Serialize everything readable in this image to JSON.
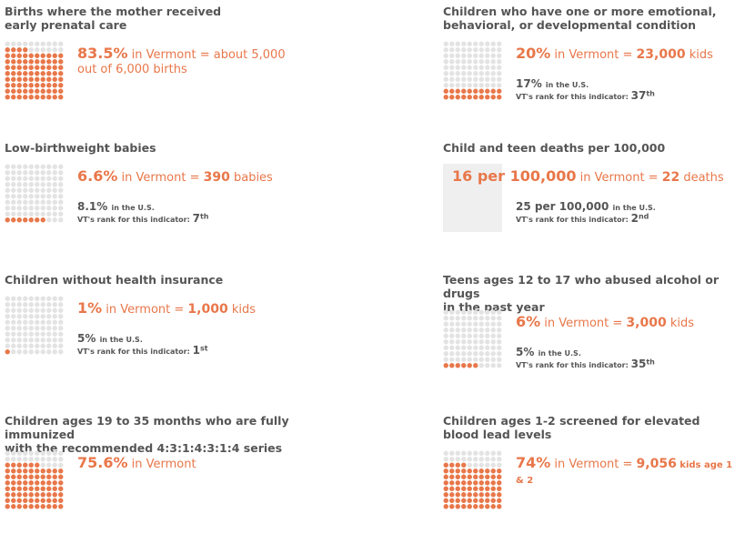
{
  "panels": [
    {
      "title": [
        "Births where the mother received",
        "early prenatal care"
      ],
      "stat": "83.5%",
      "parts": [
        {
          "text": " in Vermont = about 5,000 out of 6,000 births"
        }
      ],
      "dots": true
    },
    {
      "title": [
        "Children who have one or more emotional,",
        "behavioral, or developmental condition"
      ],
      "stat": "20%",
      "parts": [
        {
          "text": " in Vermont = "
        },
        {
          "text": "23,000",
          "bold": true
        },
        {
          "text": " kids"
        }
      ],
      "us": "17%",
      "us_label": "in the U.S.",
      "rank_label": "VT's rank for this indicator:",
      "rank": "37",
      "rank_suffix": "th",
      "dots": true
    },
    {
      "title": [
        "Low-birthweight babies"
      ],
      "stat": "6.6%",
      "parts": [
        {
          "text": " in Vermont = "
        },
        {
          "text": "390",
          "bold": true
        },
        {
          "text": " babies"
        }
      ],
      "us": "8.1%",
      "us_label": "in the U.S.",
      "rank_label": "VT's rank for this indicator:",
      "rank": "7",
      "rank_suffix": "th",
      "dots": true
    },
    {
      "title": [
        "Child and teen deaths per 100,000"
      ],
      "stat": "16 per 100,000",
      "parts": [
        {
          "text": " in Vermont = "
        },
        {
          "text": "22",
          "bold": true
        },
        {
          "text": " deaths"
        }
      ],
      "us": "25 per 100,000",
      "us_label": "in the U.S.",
      "rank_label": "VT's rank for this indicator:",
      "rank": "2",
      "rank_suffix": "nd",
      "dots": false
    },
    {
      "title": [
        "Children without health insurance"
      ],
      "stat": "1%",
      "parts": [
        {
          "text": " in Vermont = "
        },
        {
          "text": "1,000",
          "bold": true
        },
        {
          "text": " kids"
        }
      ],
      "us": "5%",
      "us_label": "in the U.S.",
      "rank_label": "VT's rank for this indicator:",
      "rank": "1",
      "rank_suffix": "st",
      "dots": true
    },
    {
      "title": [
        "Teens ages 12 to 17 who abused alcohol or drugs",
        "in the past year"
      ],
      "stat": "6%",
      "parts": [
        {
          "text": " in Vermont = "
        },
        {
          "text": "3,000",
          "bold": true
        },
        {
          "text": " kids"
        }
      ],
      "us": "5%",
      "us_label": "in the U.S.",
      "rank_label": "VT's rank for this indicator:",
      "rank": "35",
      "rank_suffix": "th",
      "dots": true
    },
    {
      "title": [
        "Children ages 19 to 35 months who are fully immunized",
        "with the recommended 4:3:1:4:3:1:4 series"
      ],
      "stat": "75.6%",
      "parts": [
        {
          "text": " in Vermont"
        }
      ],
      "dots": true
    },
    {
      "title": [
        "Children ages 1-2 screened for elevated",
        "blood lead levels"
      ],
      "stat": "74%",
      "parts": [
        {
          "text": " in Vermont =  "
        },
        {
          "text": "9,056",
          "bold": true
        },
        {
          "text": " kids age 1 & 2",
          "small": true
        }
      ],
      "dots": true
    }
  ]
}
